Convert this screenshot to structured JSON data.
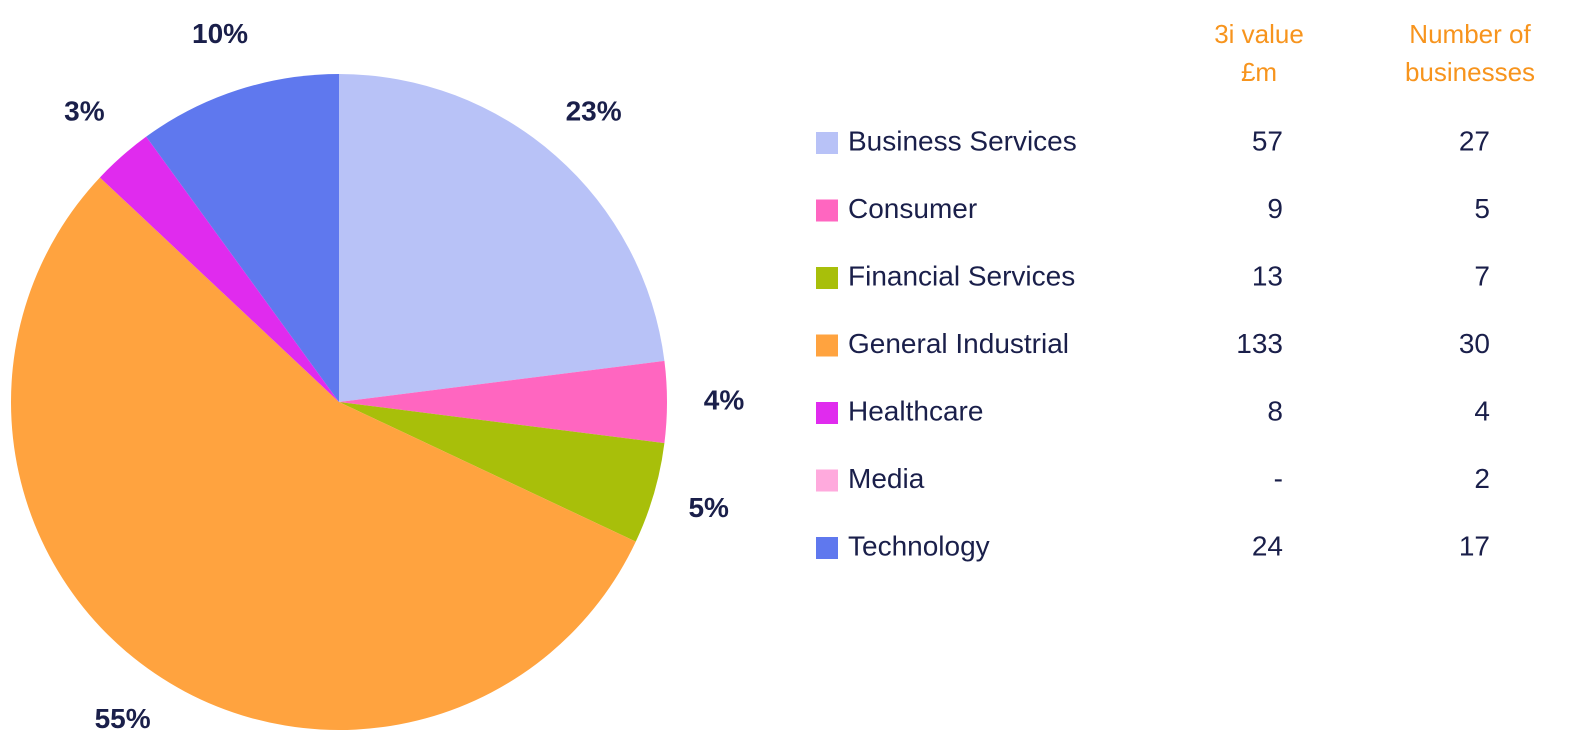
{
  "chart_data": {
    "type": "pie",
    "categories": [
      "Business Services",
      "Consumer",
      "Financial Services",
      "General Industrial",
      "Healthcare",
      "Media",
      "Technology"
    ],
    "values": [
      23,
      4,
      5,
      55,
      3,
      0,
      10
    ],
    "value_labels": [
      "23%",
      "4%",
      "5%",
      "55%",
      "3%",
      null,
      "10%"
    ],
    "colors": [
      "#b8c2f7",
      "#ff66c0",
      "#a8bf0a",
      "#ffa33f",
      "#e02bee",
      "#ffaadd",
      "#5f78ee"
    ],
    "table": {
      "columns": [
        {
          "header": [
            "3i value",
            "£m"
          ],
          "values": [
            57,
            9,
            13,
            133,
            8,
            "-",
            24
          ]
        },
        {
          "header": [
            "Number of",
            "businesses"
          ],
          "values": [
            27,
            5,
            7,
            30,
            4,
            2,
            17
          ]
        }
      ]
    }
  }
}
